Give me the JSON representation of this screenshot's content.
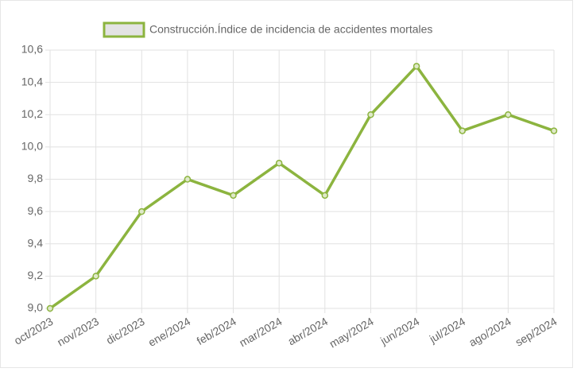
{
  "chart_data": {
    "type": "line",
    "categories": [
      "oct/2023",
      "nov/2023",
      "dic/2023",
      "ene/2024",
      "feb/2024",
      "mar/2024",
      "abr/2024",
      "may/2024",
      "jun/2024",
      "jul/2024",
      "ago/2024",
      "sep/2024"
    ],
    "series": [
      {
        "name": "Construcción.Índice de incidencia de accidentes mortales",
        "color": "#8cb43f",
        "values": [
          9.0,
          9.2,
          9.6,
          9.8,
          9.7,
          9.9,
          9.7,
          10.2,
          10.5,
          10.1,
          10.2,
          10.1
        ]
      }
    ],
    "ylim": [
      9.0,
      10.6
    ],
    "yticks": [
      {
        "value": 9.0,
        "label": "9,0"
      },
      {
        "value": 9.2,
        "label": "9,2"
      },
      {
        "value": 9.4,
        "label": "9,4"
      },
      {
        "value": 9.6,
        "label": "9,6"
      },
      {
        "value": 9.8,
        "label": "9,8"
      },
      {
        "value": 10.0,
        "label": "10,0"
      },
      {
        "value": 10.2,
        "label": "10,2"
      },
      {
        "value": 10.4,
        "label": "10,4"
      },
      {
        "value": 10.6,
        "label": "10,6"
      }
    ],
    "grid": true,
    "legend": "top"
  }
}
